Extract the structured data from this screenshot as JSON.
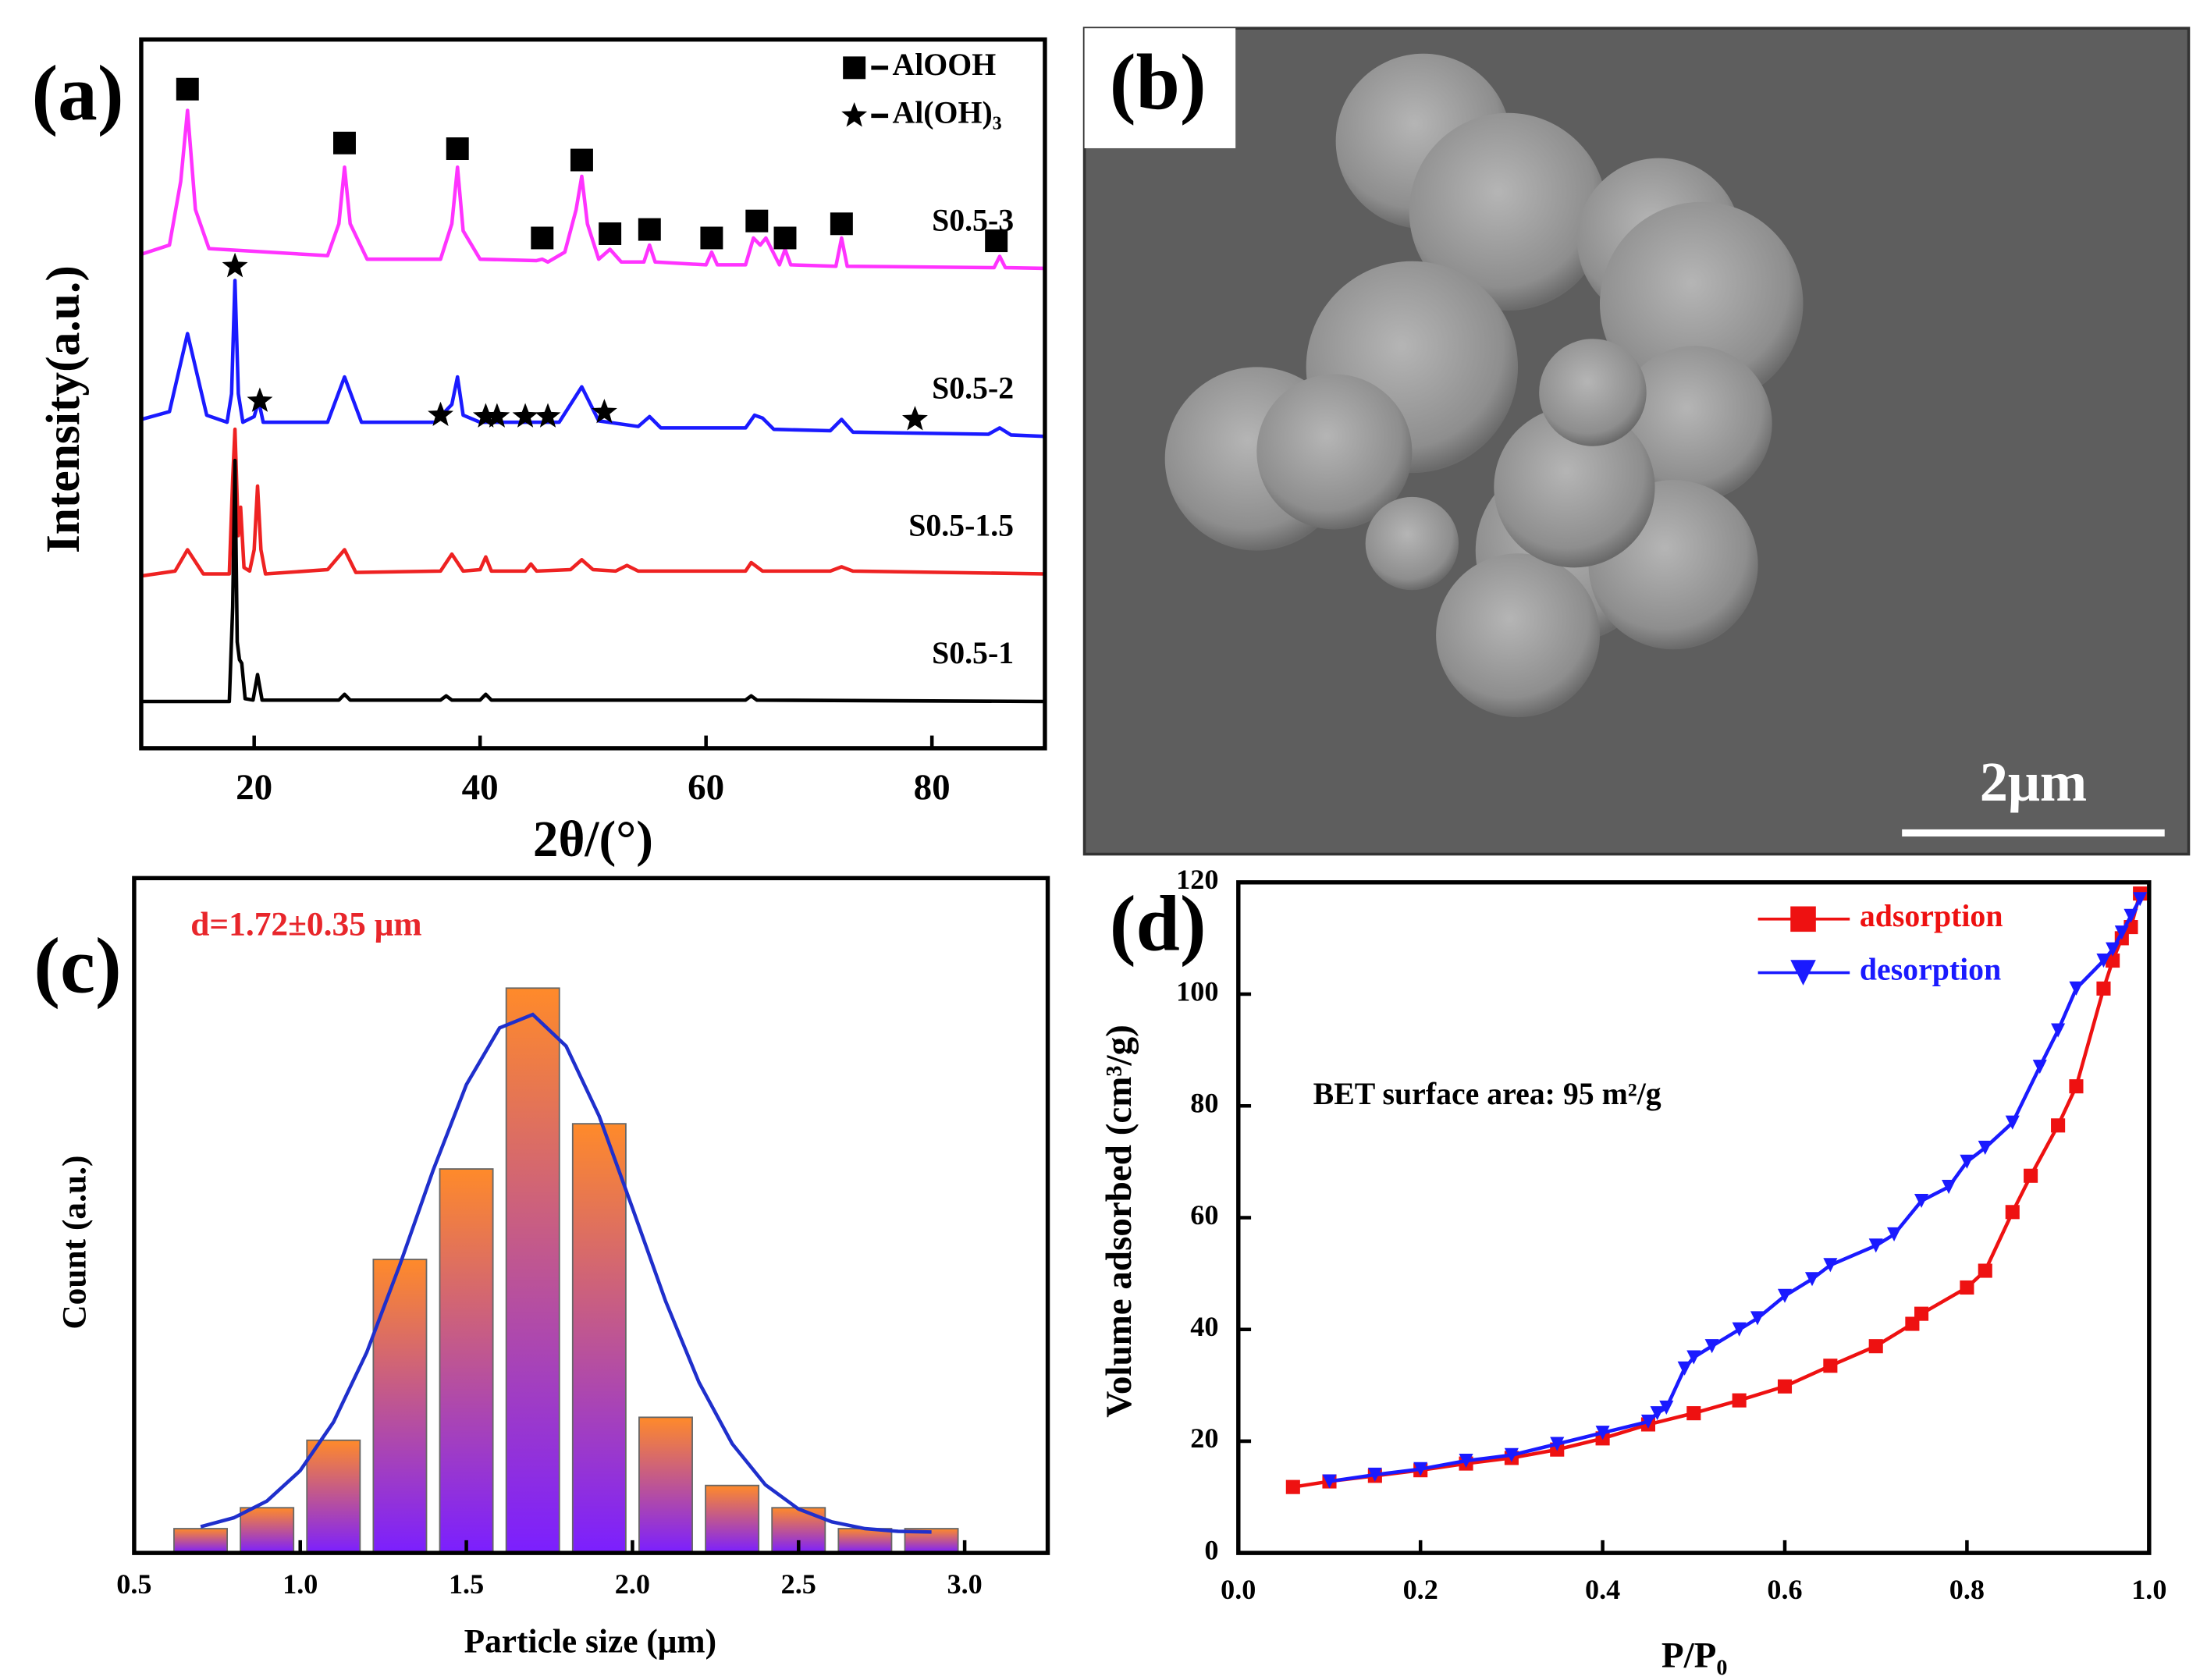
{
  "chart_data": [
    {
      "type": "line",
      "panel_label": "(a)",
      "xlabel": "2θ/(°)",
      "ylabel": "Intensity(a.u.)",
      "xlim": [
        10,
        90
      ],
      "xticks": [
        20,
        40,
        60,
        80
      ],
      "ylim": [
        0,
        100
      ],
      "series": [
        {
          "name": "S0.5-3",
          "color": "#ff33ff",
          "x": [
            10,
            12.5,
            13.5,
            14.1,
            14.8,
            16,
            26.5,
            27.5,
            28,
            28.5,
            30,
            36.5,
            37.5,
            38,
            38.5,
            40,
            45,
            45.5,
            46,
            47.5,
            48.5,
            49,
            49.5,
            50.5,
            51.5,
            52.5,
            54.5,
            55,
            55.5,
            60,
            60.5,
            61,
            63.5,
            64.2,
            64.8,
            65.3,
            66.5,
            67,
            67.5,
            71.5,
            72,
            72.5,
            85.5,
            86,
            86.5,
            90
          ],
          "values": [
            69.7,
            71,
            80,
            90,
            76,
            70.5,
            69.5,
            74,
            82,
            74,
            69,
            69,
            74,
            82,
            73,
            69,
            68.8,
            69,
            68.6,
            70,
            76,
            80.7,
            74,
            69,
            70.4,
            68.6,
            68.6,
            71,
            68.6,
            68.2,
            70,
            68.2,
            68.2,
            72,
            71,
            72,
            68.2,
            70.4,
            68.2,
            68,
            72,
            68,
            67.8,
            69.4,
            67.8,
            67.7
          ]
        },
        {
          "name": "S0.5-2",
          "color": "#1a1aff",
          "x": [
            10,
            12.5,
            14.1,
            15.8,
            17.6,
            18,
            18.3,
            18.6,
            19,
            20,
            20.4,
            20.8,
            26.5,
            28,
            29.5,
            36,
            37.5,
            38,
            38.5,
            40,
            47,
            49,
            50.5,
            54,
            55,
            56,
            63.5,
            64.3,
            65,
            66,
            71,
            72,
            73,
            85,
            86,
            87,
            90
          ],
          "values": [
            46.4,
            47.5,
            58.5,
            47,
            46,
            50,
            66,
            50,
            46,
            46.8,
            49,
            46,
            46,
            52.4,
            46,
            46,
            48.5,
            52.4,
            47,
            46,
            46,
            51,
            46.2,
            45.4,
            46.8,
            45.2,
            45.2,
            47,
            46.6,
            45,
            44.8,
            46.4,
            44.6,
            44.3,
            45.2,
            44.2,
            44
          ]
        },
        {
          "name": "S0.5-1.5",
          "color": "#ee2222",
          "x": [
            10,
            13,
            14.1,
            15.5,
            17.8,
            18.1,
            18.3,
            18.6,
            18.8,
            19.1,
            19.6,
            20,
            20.3,
            20.6,
            21,
            26.5,
            28,
            29,
            36.5,
            37.5,
            38.5,
            40,
            40.5,
            41,
            44,
            44.5,
            45,
            48,
            49,
            50,
            52,
            53,
            54,
            63.5,
            64,
            65,
            71,
            72,
            73,
            90
          ],
          "values": [
            24.3,
            25,
            28,
            24.6,
            24.6,
            38,
            45,
            30,
            34,
            25.5,
            25,
            28,
            37,
            28,
            24.6,
            25.2,
            28,
            24.8,
            25,
            27.4,
            25,
            25.2,
            27,
            25,
            25,
            26,
            25,
            25.2,
            26.6,
            25.2,
            25,
            25.8,
            25,
            25,
            26.2,
            25,
            25,
            25.6,
            25,
            24.6
          ]
        },
        {
          "name": "S0.5-1",
          "color": "#000000",
          "x": [
            10,
            17.8,
            18.1,
            18.3,
            18.5,
            18.7,
            18.9,
            19.2,
            19.9,
            20.3,
            20.7,
            27.5,
            28,
            28.5,
            36.5,
            37,
            37.5,
            40,
            40.5,
            41,
            63.5,
            64,
            64.5,
            90
          ],
          "values": [
            6.6,
            6.6,
            20,
            40.6,
            15,
            12.5,
            12,
            7,
            6.8,
            10.4,
            6.8,
            6.8,
            7.6,
            6.8,
            6.8,
            7.4,
            6.8,
            6.8,
            7.6,
            6.8,
            6.8,
            7.4,
            6.8,
            6.6
          ]
        }
      ],
      "peak_markers": [
        {
          "name": "AlOOH",
          "symbol": "square",
          "x": [
            14.1,
            28,
            38,
            45.5,
            49,
            51.5,
            55,
            60.5,
            64.5,
            67,
            72,
            85.7
          ],
          "y": [
            93,
            85.4,
            84.6,
            72,
            83,
            72.6,
            73.2,
            72,
            74.4,
            72,
            74,
            71.6
          ]
        },
        {
          "name": "Al(OH)₃",
          "symbol": "star",
          "x": [
            18.3,
            20.5,
            36.5,
            40.5,
            41.5,
            44,
            46,
            51,
            78.5
          ],
          "y": [
            68,
            49,
            47,
            46.8,
            46.8,
            46.8,
            46.8,
            47.4,
            46.4
          ]
        }
      ]
    },
    {
      "type": "bar",
      "panel_label": "(c)",
      "xlabel": "Particle size (μm)",
      "ylabel": "Count (a.u.)",
      "annotation": "d=1.72±0.35 μm",
      "annotation_color": "#e8262b",
      "xlim": [
        0.5,
        3.25
      ],
      "xticks": [
        0.5,
        {
          "value": 1,
          "label": "1.0"
        },
        1.5,
        {
          "value": 2,
          "label": "2.0"
        },
        2.5,
        {
          "value": 3,
          "label": "3.0"
        }
      ],
      "ylim": [
        0,
        100
      ],
      "colors": [
        "#ff8a2a",
        "#7b1fff"
      ],
      "x": [
        0.7,
        0.9,
        1.1,
        1.3,
        1.5,
        1.7,
        1.9,
        2.1,
        2.3,
        2.5,
        2.7,
        2.9
      ],
      "values": [
        3.6,
        6.7,
        16.7,
        43.5,
        56.9,
        83.7,
        63.6,
        20.1,
        10,
        6.7,
        3.6,
        3.6
      ],
      "fit": {
        "color": "#1f2fcc",
        "x": [
          0.7,
          0.8,
          0.9,
          1.0,
          1.1,
          1.2,
          1.3,
          1.4,
          1.5,
          1.6,
          1.7,
          1.8,
          1.9,
          2.0,
          2.1,
          2.2,
          2.3,
          2.4,
          2.5,
          2.6,
          2.7,
          2.8,
          2.9
        ],
        "values": [
          3.9,
          5.2,
          7.7,
          12.2,
          19.4,
          29.7,
          42.7,
          56.7,
          69.4,
          77.8,
          79.8,
          75.1,
          64.7,
          51.1,
          37.3,
          25.3,
          16.2,
          10.1,
          6.5,
          4.6,
          3.6,
          3.2,
          3.1
        ]
      }
    },
    {
      "type": "line",
      "panel_label": "(d)",
      "xlabel": "P/P₀",
      "ylabel": "Volume adsorbed (cm³/g)",
      "annotation": "BET surface area: 95 m²/g",
      "legend": "upper right",
      "xlim": [
        0,
        1
      ],
      "xticks": [
        {
          "value": 0,
          "label": "0.0"
        },
        0.2,
        0.4,
        0.6,
        0.8,
        {
          "value": 1,
          "label": "1.0"
        }
      ],
      "ylim": [
        0,
        120
      ],
      "yticks": [
        0,
        20,
        40,
        60,
        80,
        100,
        120
      ],
      "series": [
        {
          "name": "adsorption",
          "color": "#ee1111",
          "marker": "square",
          "x": [
            0.06,
            0.1,
            0.15,
            0.2,
            0.25,
            0.3,
            0.35,
            0.4,
            0.45,
            0.5,
            0.55,
            0.6,
            0.65,
            0.7,
            0.74,
            0.75,
            0.8,
            0.82,
            0.85,
            0.87,
            0.9,
            0.92,
            0.95,
            0.96,
            0.97,
            0.98,
            0.99
          ],
          "values": [
            11.8,
            12.8,
            13.8,
            14.8,
            16,
            17,
            18.5,
            20.5,
            23,
            25,
            27.3,
            29.8,
            33.5,
            37,
            41,
            42.8,
            47.5,
            50.5,
            61,
            67.5,
            76.5,
            83.5,
            101,
            106,
            110,
            112,
            118
          ]
        },
        {
          "name": "desorption",
          "color": "#1a1aff",
          "marker": "triangle",
          "x": [
            0.99,
            0.98,
            0.97,
            0.96,
            0.95,
            0.92,
            0.9,
            0.88,
            0.85,
            0.82,
            0.8,
            0.78,
            0.75,
            0.72,
            0.7,
            0.65,
            0.63,
            0.6,
            0.57,
            0.55,
            0.52,
            0.5,
            0.49,
            0.47,
            0.46,
            0.45,
            0.4,
            0.35,
            0.3,
            0.25,
            0.2,
            0.15,
            0.1
          ],
          "values": [
            117,
            114,
            111,
            108,
            106,
            101,
            93.5,
            87,
            77,
            72.5,
            70,
            65.5,
            63,
            57,
            55,
            51.5,
            49,
            46,
            42,
            40,
            37,
            35,
            33,
            26,
            25,
            23.5,
            21.5,
            19.5,
            17.5,
            16.5,
            15,
            14,
            12.8
          ]
        }
      ]
    }
  ],
  "image_panel": {
    "panel_label": "(b)",
    "scale_bar": "2μm"
  }
}
